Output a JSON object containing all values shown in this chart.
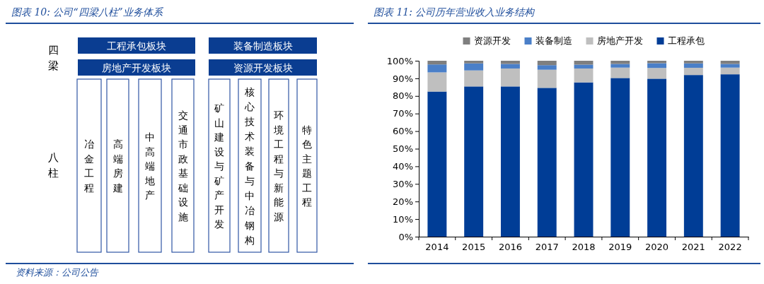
{
  "chart_data": [
    {
      "type": "other",
      "title": "图表 10: 公司“四梁八柱”业务体系",
      "annotations": [
        "四梁",
        "八柱",
        "工程承包板块",
        "装备制造板块",
        "房地产开发板块",
        "资源开发板块",
        "冶金工程",
        "高端房建",
        "中高端地产",
        "交通市政基础设施",
        "矿山建设与矿产开发",
        "核心技术装备与中冶钢构",
        "环境工程与新能源",
        "特色主题工程",
        "资料来源：公司公告"
      ]
    },
    {
      "type": "bar",
      "title": "图表 11: 公司历年营业收入业务结构",
      "stacked": true,
      "legend": "top",
      "categories": [
        "2014",
        "2015",
        "2016",
        "2017",
        "2018",
        "2019",
        "2020",
        "2021",
        "2022"
      ],
      "series": [
        {
          "name": "工程承包",
          "color": "#003d96",
          "values": [
            82.5,
            85.4,
            85.4,
            84.6,
            87.7,
            90.2,
            89.8,
            91.9,
            92.3
          ]
        },
        {
          "name": "房地产开发",
          "color": "#bfbfbf",
          "values": [
            10.9,
            9.1,
            10.2,
            10.3,
            7.9,
            5.9,
            6.1,
            4.1,
            3.8
          ]
        },
        {
          "name": "装备制造",
          "color": "#4a7fc8",
          "values": [
            4.5,
            4.0,
            2.6,
            2.6,
            2.2,
            2.1,
            2.7,
            2.5,
            2.1
          ]
        },
        {
          "name": "资源开发",
          "color": "#7f7f7f",
          "values": [
            2.1,
            1.5,
            1.8,
            2.5,
            2.2,
            1.8,
            1.4,
            1.5,
            1.8
          ]
        }
      ],
      "ylim": [
        0,
        100
      ],
      "yticks": [
        {
          "value": 0,
          "label": "0%"
        },
        {
          "value": 10,
          "label": "10%"
        },
        {
          "value": 20,
          "label": "20%"
        },
        {
          "value": 30,
          "label": "30%"
        },
        {
          "value": 40,
          "label": "40%"
        },
        {
          "value": 50,
          "label": "50%"
        },
        {
          "value": 60,
          "label": "60%"
        },
        {
          "value": 70,
          "label": "70%"
        },
        {
          "value": 80,
          "label": "80%"
        },
        {
          "value": 90,
          "label": "90%"
        },
        {
          "value": 100,
          "label": "100%"
        }
      ]
    }
  ]
}
